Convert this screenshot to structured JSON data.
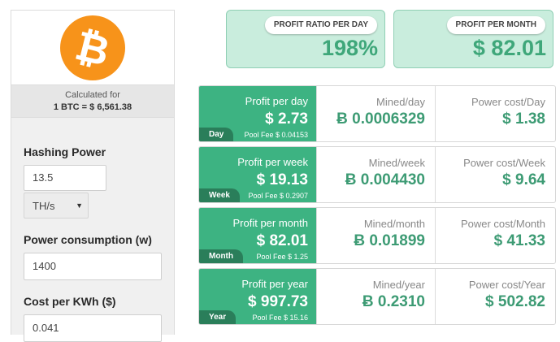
{
  "calculator": {
    "calc_for": "Calculated for",
    "rate": "1 BTC = $ 6,561.38",
    "hashing_label": "Hashing Power",
    "hashing_value": "13.5",
    "hashing_unit": "TH/s",
    "power_label": "Power consumption (w)",
    "power_value": "1400",
    "cost_label": "Cost per KWh ($)",
    "cost_value": "0.041"
  },
  "summary": {
    "ratio_label": "PROFIT RATIO PER DAY",
    "ratio_value": "198%",
    "month_label": "PROFIT PER MONTH",
    "month_value": "$ 82.01"
  },
  "rows": [
    {
      "tag": "Day",
      "profit_label": "Profit per day",
      "profit": "$ 2.73",
      "fee": "Pool Fee $ 0.04153",
      "mined_label": "Mined/day",
      "mined": "Ƀ 0.0006329",
      "cost_label": "Power cost/Day",
      "cost": "$ 1.38"
    },
    {
      "tag": "Week",
      "profit_label": "Profit per week",
      "profit": "$ 19.13",
      "fee": "Pool Fee $ 0.2907",
      "mined_label": "Mined/week",
      "mined": "Ƀ 0.004430",
      "cost_label": "Power cost/Week",
      "cost": "$ 9.64"
    },
    {
      "tag": "Month",
      "profit_label": "Profit per month",
      "profit": "$ 82.01",
      "fee": "Pool Fee $ 1.25",
      "mined_label": "Mined/month",
      "mined": "Ƀ 0.01899",
      "cost_label": "Power cost/Month",
      "cost": "$ 41.33"
    },
    {
      "tag": "Year",
      "profit_label": "Profit per year",
      "profit": "$ 997.73",
      "fee": "Pool Fee $ 15.16",
      "mined_label": "Mined/year",
      "mined": "Ƀ 0.2310",
      "cost_label": "Power cost/Year",
      "cost": "$ 502.82"
    }
  ],
  "colors": {
    "accent": "#3db382",
    "accent_dark": "#2a7e5a",
    "bitcoin_orange": "#f7931a"
  }
}
